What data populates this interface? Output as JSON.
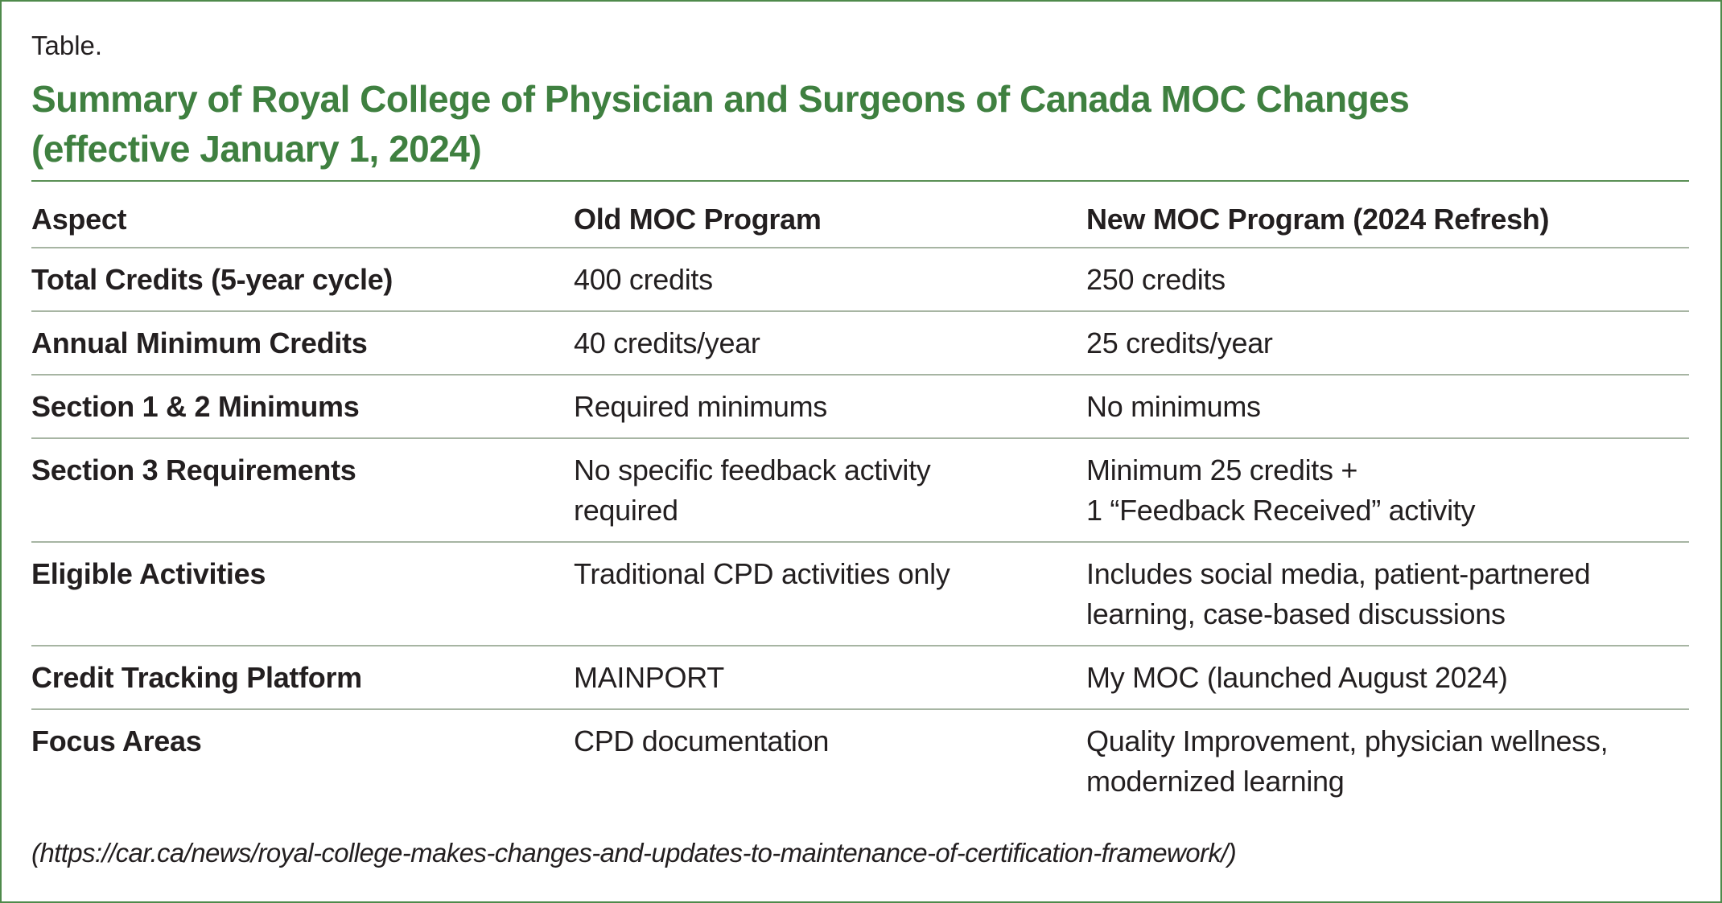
{
  "header": {
    "label": "Table.",
    "title_lines": [
      "Summary of Royal College of Physician and Surgeons of Canada MOC Changes",
      "(effective January 1, 2024)"
    ]
  },
  "table": {
    "columns": [
      "Aspect",
      "Old MOC Program",
      "New MOC Program (2024 Refresh)"
    ],
    "rows": [
      [
        "Total Credits (5-year cycle)",
        "400 credits",
        "250 credits"
      ],
      [
        "Annual Minimum Credits",
        "40 credits/year",
        "25 credits/year"
      ],
      [
        "Section 1 & 2 Minimums",
        "Required minimums",
        "No minimums"
      ],
      [
        "Section 3 Requirements",
        "No specific feedback activity\nrequired",
        "Minimum 25 credits +\n1 “Feedback Received” activity"
      ],
      [
        "Eligible Activities",
        "Traditional CPD activities only",
        "Includes social media, patient-partnered\nlearning, case-based discussions"
      ],
      [
        "Credit Tracking Platform",
        "MAINPORT",
        "My MOC (launched August 2024)"
      ],
      [
        "Focus Areas",
        "CPD documentation",
        "Quality Improvement, physician wellness,\nmodernized learning"
      ]
    ]
  },
  "source": "(https://car.ca/news/royal-college-makes-changes-and-updates-to-maintenance-of-certification-framework/)"
}
